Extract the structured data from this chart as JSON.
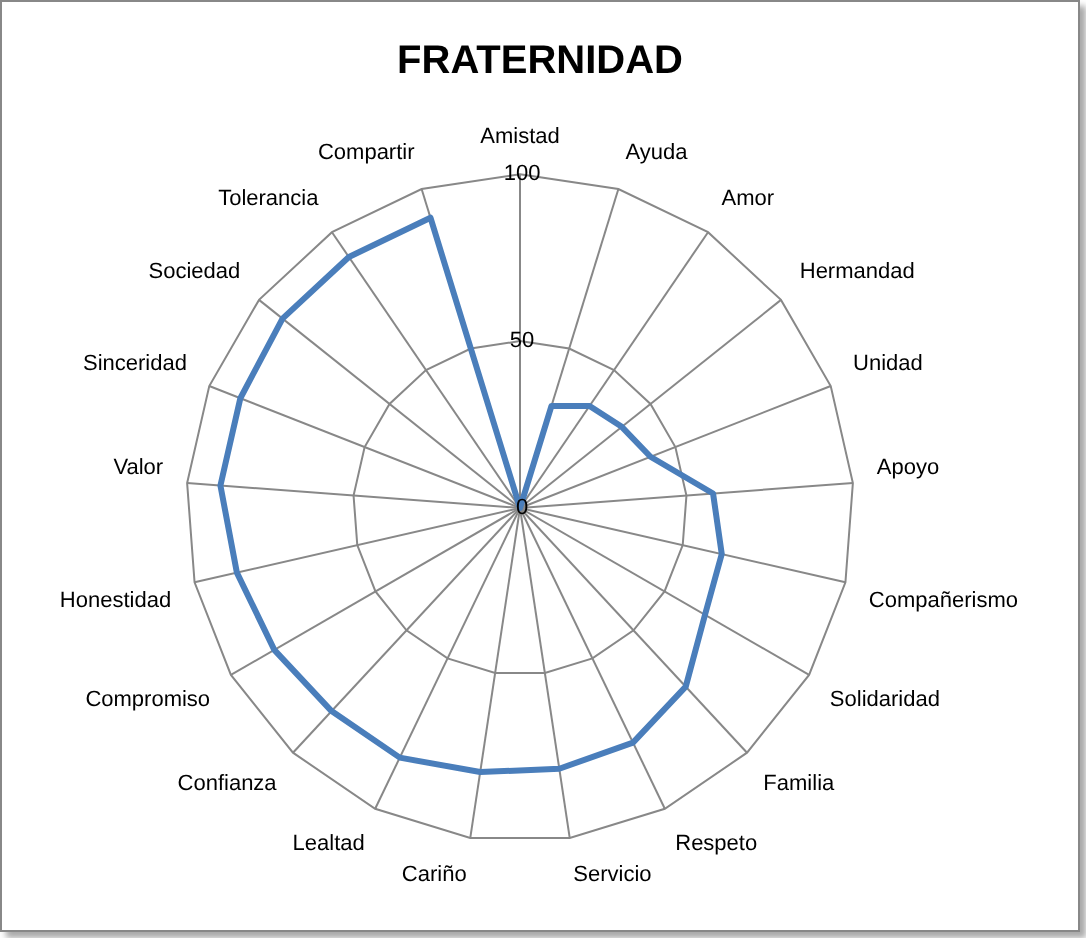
{
  "chart_data": {
    "type": "radar",
    "title": "FRATERNIDAD",
    "categories": [
      "Amistad",
      "Ayuda",
      "Amor",
      "Hermandad",
      "Unidad",
      "Apoyo",
      "Compañerismo",
      "Solidaridad",
      "Familia",
      "Respeto",
      "Servicio",
      "Cariño",
      "Lealtad",
      "Confianza",
      "Compromiso",
      "Honestidad",
      "Valor",
      "Sinceridad",
      "Sociedad",
      "Tolerancia",
      "Compartir"
    ],
    "series": [
      {
        "color": "#4a7ebb",
        "values": [
          0,
          32,
          37,
          39,
          42,
          58,
          62,
          64,
          73,
          78,
          79,
          80,
          83,
          83,
          85,
          87,
          90,
          90,
          91,
          91,
          91
        ]
      }
    ],
    "ylim": [
      0,
      100
    ],
    "yticks": [
      0,
      50,
      100
    ],
    "grid": true,
    "legend": false,
    "marker": "none",
    "line_style": "solid"
  }
}
